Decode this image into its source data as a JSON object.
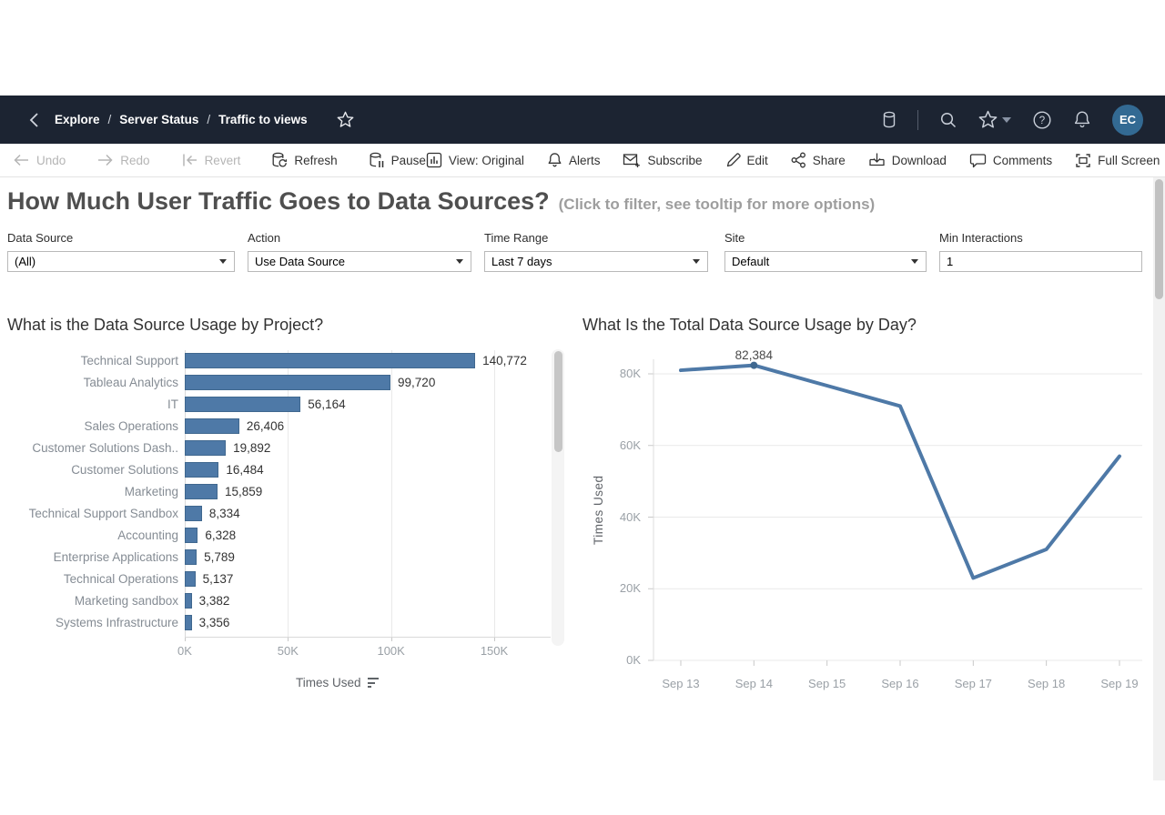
{
  "navbar": {
    "breadcrumb": {
      "items": [
        "Explore",
        "Server Status",
        "Traffic to views"
      ],
      "separator": "/"
    },
    "avatar_initials": "EC"
  },
  "toolbar": {
    "undo": "Undo",
    "redo": "Redo",
    "revert": "Revert",
    "refresh": "Refresh",
    "pause": "Pause",
    "view": "View: Original",
    "alerts": "Alerts",
    "subscribe": "Subscribe",
    "edit": "Edit",
    "share": "Share",
    "download": "Download",
    "comments": "Comments",
    "full_screen": "Full Screen"
  },
  "header": {
    "title": "How Much User Traffic Goes to Data Sources?",
    "subtitle": "(Click to filter, see tooltip for more options)"
  },
  "filters": [
    {
      "label": "Data Source",
      "value": "(All)",
      "type": "select"
    },
    {
      "label": "Action",
      "value": "Use Data Source",
      "type": "select"
    },
    {
      "label": "Time Range",
      "value": "Last 7 days",
      "type": "select"
    },
    {
      "label": "Site",
      "value": "Default",
      "type": "select"
    },
    {
      "label": "Min Interactions",
      "value": "1",
      "type": "input"
    }
  ],
  "colors": {
    "accent_blue": "#4e79a7",
    "navbar_bg": "#1c2432",
    "avatar_bg": "#336a93",
    "gridline": "#e9e9e9"
  },
  "chart_data": [
    {
      "type": "bar",
      "orientation": "horizontal",
      "title": "What is the Data Source Usage by Project?",
      "categories": [
        "Technical Support",
        "Tableau Analytics",
        "IT",
        "Sales Operations",
        "Customer Solutions Dash..",
        "Customer Solutions",
        "Marketing",
        "Technical Support Sandbox",
        "Accounting",
        "Enterprise Applications",
        "Technical Operations",
        "Marketing sandbox",
        "Systems Infrastructure"
      ],
      "values": [
        140772,
        99720,
        56164,
        26406,
        19892,
        16484,
        15859,
        8334,
        6328,
        5789,
        5137,
        3382,
        3356
      ],
      "value_labels": [
        "140,772",
        "99,720",
        "56,164",
        "26,406",
        "19,892",
        "16,484",
        "15,859",
        "8,334",
        "6,328",
        "5,789",
        "5,137",
        "3,382",
        "3,356"
      ],
      "xlabel": "Times Used",
      "xtick_labels": [
        "0K",
        "50K",
        "100K",
        "150K"
      ],
      "xtick_values": [
        0,
        50000,
        100000,
        150000
      ],
      "xlim": [
        0,
        176000
      ],
      "sort": "descending",
      "grid": "vertical"
    },
    {
      "type": "line",
      "title": "What Is the Total Data Source Usage by Day?",
      "x": [
        "Sep 13",
        "Sep 14",
        "Sep 15",
        "Sep 16",
        "Sep 17",
        "Sep 18",
        "Sep 19"
      ],
      "values": [
        81000,
        82384,
        76700,
        71000,
        23000,
        31000,
        57000
      ],
      "annotation": {
        "index": 1,
        "label": "82,384"
      },
      "ylabel": "Times Used",
      "ytick_labels": [
        "0K",
        "20K",
        "40K",
        "60K",
        "80K"
      ],
      "ytick_values": [
        0,
        20000,
        40000,
        60000,
        80000
      ],
      "ylim": [
        0,
        87000
      ],
      "grid": "horizontal",
      "legend": "none"
    }
  ]
}
